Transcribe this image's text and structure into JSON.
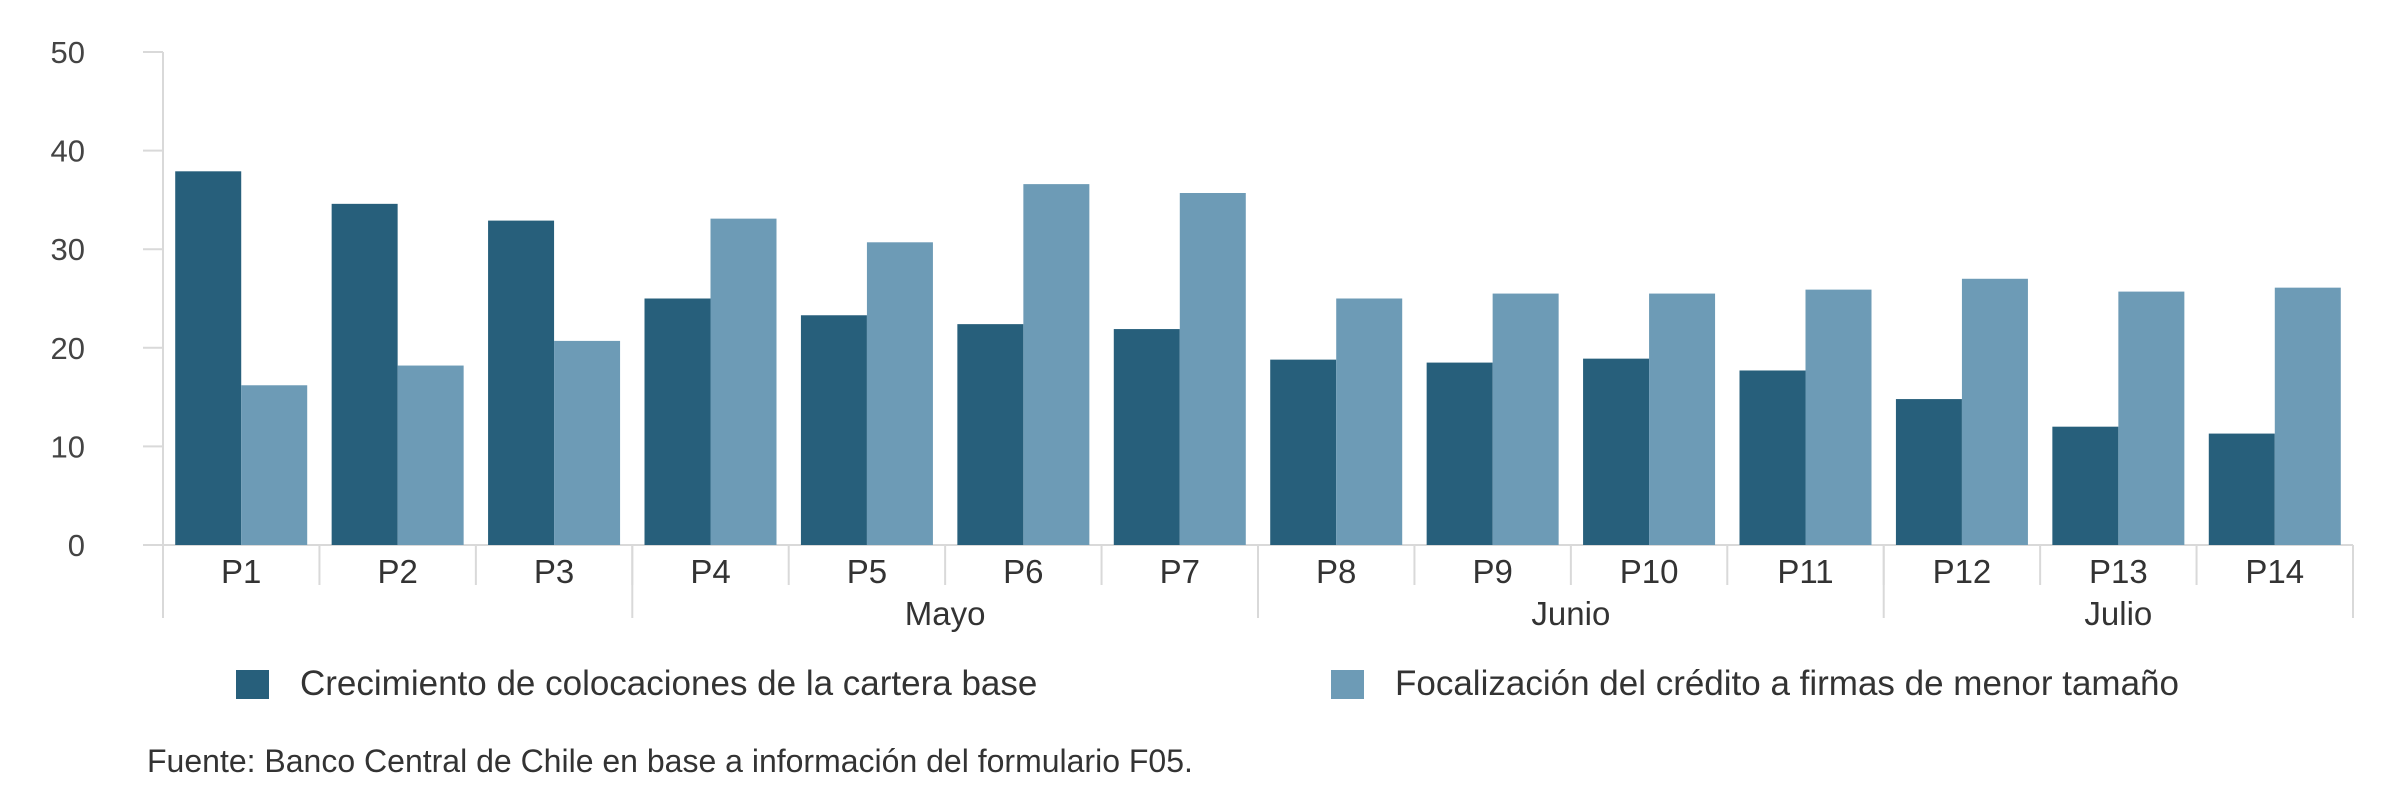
{
  "chart_data": {
    "type": "bar",
    "categories": [
      "P1",
      "P2",
      "P3",
      "P4",
      "P5",
      "P6",
      "P7",
      "P8",
      "P9",
      "P10",
      "P11",
      "P12",
      "P13",
      "P14"
    ],
    "groups": [
      {
        "label": "Mayo",
        "categories": [
          "P4",
          "P5",
          "P6",
          "P7"
        ]
      },
      {
        "label": "Junio",
        "categories": [
          "P8",
          "P9",
          "P10",
          "P11"
        ]
      },
      {
        "label": "Julio",
        "categories": [
          "P12",
          "P13",
          "P14"
        ]
      }
    ],
    "series": [
      {
        "name": "Crecimiento de colocaciones de la cartera base",
        "color": "#275f7b",
        "values": [
          37.9,
          34.6,
          32.9,
          25.0,
          23.3,
          22.4,
          21.9,
          18.8,
          18.5,
          18.9,
          17.7,
          14.8,
          12.0,
          11.3
        ]
      },
      {
        "name": "Focalización del crédito a firmas de menor tamaño",
        "color": "#6d9bb6",
        "values": [
          16.2,
          18.2,
          20.7,
          33.1,
          30.7,
          36.6,
          35.7,
          25.0,
          25.5,
          25.5,
          25.9,
          27.0,
          25.7,
          26.1
        ]
      }
    ],
    "ylim": [
      0,
      50
    ],
    "yticks": [
      0,
      10,
      20,
      30,
      40,
      50
    ],
    "title": "",
    "xlabel": "",
    "ylabel": "",
    "grid": false,
    "legend_position": "bottom"
  },
  "legend": {
    "item1": "Crecimiento de colocaciones de la cartera base",
    "item2": "Focalización del crédito a firmas de menor tamaño"
  },
  "source": "Fuente: Banco Central de Chile en base a información del formulario F05."
}
